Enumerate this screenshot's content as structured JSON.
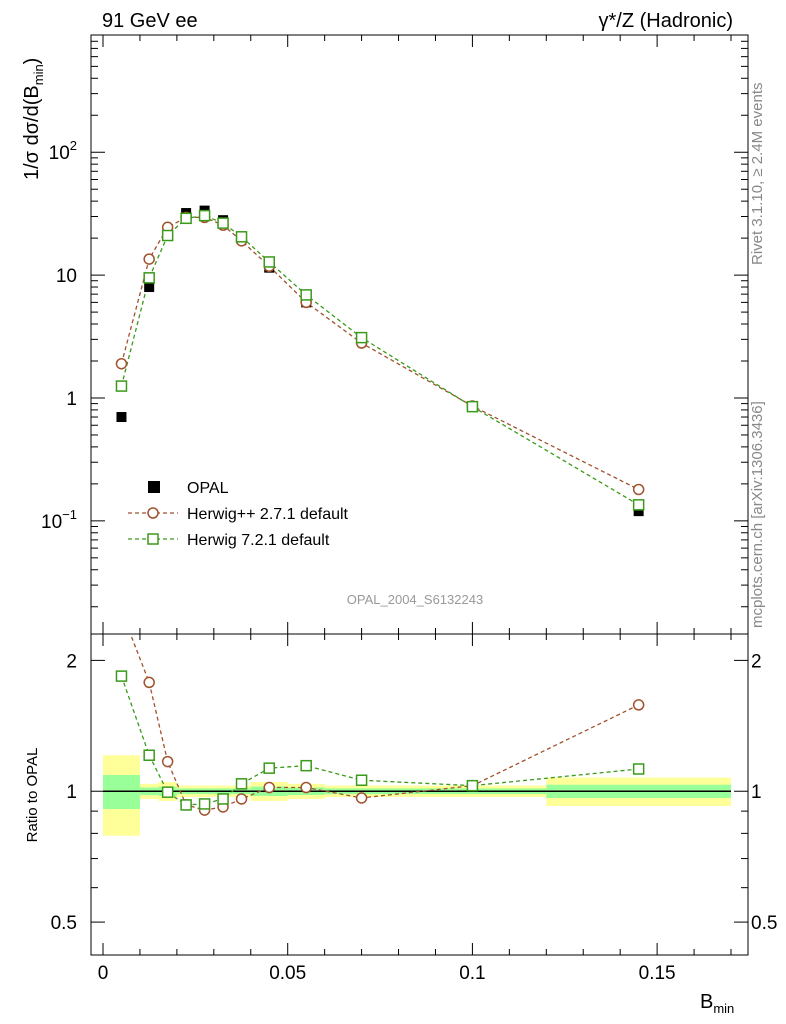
{
  "chart_data": {
    "type": "line",
    "title_left": "91 GeV ee",
    "title_right": "γ*/Z (Hadronic)",
    "side_label_top": "Rivet 3.1.10, ≥ 2.4M events",
    "side_label_bottom": "mcplots.cern.ch [arXiv:1306.3436]",
    "analysis_label": "OPAL_2004_S6132243",
    "xlabel": "B",
    "xlabel_sub": "min",
    "ylabel": "1/σ dσ/d(B",
    "ylabel_sub": "min",
    "ylabel_close": ")",
    "ratio_ylabel": "Ratio to OPAL",
    "xlim": [
      0,
      0.17
    ],
    "ylim": [
      0.012,
      900
    ],
    "yscale": "log",
    "ratio_ylim": [
      0.42,
      2.3
    ],
    "ratio_yscale": "log",
    "x_ticks": [
      "0",
      "0.05",
      "0.1",
      "0.15"
    ],
    "x_tick_values": [
      0,
      0.05,
      0.1,
      0.15
    ],
    "y_tick_labels": [
      {
        "value": 0.1,
        "base": "10",
        "exp": "−1"
      },
      {
        "value": 1,
        "base": "1",
        "exp": ""
      },
      {
        "value": 10,
        "base": "10",
        "exp": ""
      },
      {
        "value": 100,
        "base": "10",
        "exp": "2"
      }
    ],
    "ratio_tick_labels": [
      {
        "value": 0.5,
        "label": "0.5"
      },
      {
        "value": 1,
        "label": "1"
      },
      {
        "value": 2,
        "label": "2"
      }
    ],
    "legend": [
      {
        "name": "OPAL",
        "marker": "square-filled",
        "color": "#000000"
      },
      {
        "name": "Herwig++ 2.7.1 default",
        "marker": "circle-open",
        "color": "#a0522d"
      },
      {
        "name": "Herwig 7.2.1 default",
        "marker": "square-open",
        "color": "#3a9a1a"
      }
    ],
    "bins": [
      0,
      0.01,
      0.015,
      0.02,
      0.025,
      0.03,
      0.035,
      0.04,
      0.05,
      0.06,
      0.08,
      0.12,
      0.17
    ],
    "x": [
      0.005,
      0.0125,
      0.0175,
      0.0225,
      0.0275,
      0.0325,
      0.0375,
      0.045,
      0.055,
      0.07,
      0.1,
      0.145
    ],
    "data": [
      0.7,
      8.0,
      21.0,
      32.0,
      33.5,
      28.0,
      20.0,
      11.5,
      6.0,
      3.0,
      0.85,
      0.12
    ],
    "series": [
      {
        "name": "Herwig++ 2.7.1 default",
        "values": [
          1.9,
          13.5,
          24.5,
          29.5,
          29.5,
          25.5,
          19.0,
          11.8,
          6.0,
          2.8,
          0.86,
          0.18
        ],
        "ratio": [
          2.6,
          1.78,
          1.17,
          0.93,
          0.905,
          0.92,
          0.96,
          1.02,
          1.02,
          0.965,
          1.03,
          1.58
        ]
      },
      {
        "name": "Herwig 7.2.1 default",
        "values": [
          1.25,
          9.5,
          21.0,
          29.0,
          30.5,
          26.5,
          20.5,
          12.8,
          6.9,
          3.1,
          0.85,
          0.135
        ],
        "ratio": [
          1.84,
          1.21,
          0.995,
          0.93,
          0.935,
          0.96,
          1.04,
          1.13,
          1.145,
          1.06,
          1.03,
          1.125
        ]
      }
    ],
    "uncertainty_inner": [
      0.09,
      0.02,
      0.025,
      0.015,
      0.015,
      0.015,
      0.015,
      0.025,
      0.02,
      0.015,
      0.015,
      0.035
    ],
    "uncertainty_outer": [
      0.21,
      0.04,
      0.05,
      0.03,
      0.03,
      0.03,
      0.03,
      0.05,
      0.04,
      0.03,
      0.03,
      0.075
    ],
    "colors": {
      "band_inner": "#99ff99",
      "band_outer": "#ffff99",
      "data": "#000000"
    }
  }
}
